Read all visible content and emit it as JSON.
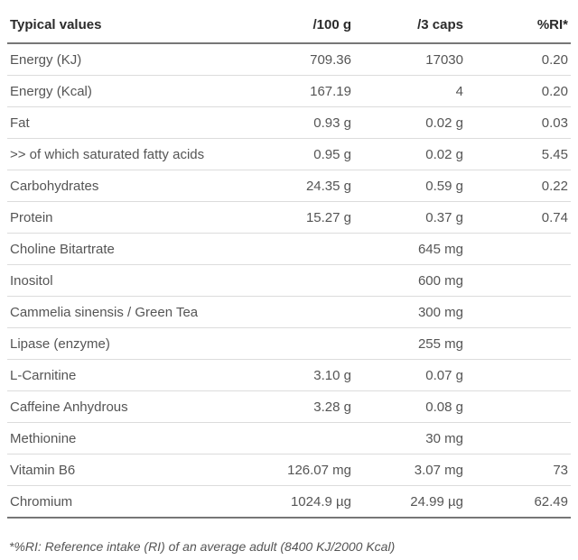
{
  "table": {
    "headers": [
      "Typical values",
      "/100 g",
      "/3 caps",
      "%RI*"
    ],
    "rows": [
      [
        "Energy (KJ)",
        "709.36",
        "17030",
        "0.20"
      ],
      [
        "Energy (Kcal)",
        "167.19",
        "4",
        "0.20"
      ],
      [
        "Fat",
        "0.93 g",
        "0.02 g",
        "0.03"
      ],
      [
        ">> of which saturated fatty acids",
        "0.95 g",
        "0.02 g",
        "5.45"
      ],
      [
        "Carbohydrates",
        "24.35 g",
        "0.59 g",
        "0.22"
      ],
      [
        "Protein",
        "15.27 g",
        "0.37 g",
        "0.74"
      ],
      [
        "Choline Bitartrate",
        "",
        "645 mg",
        ""
      ],
      [
        "Inositol",
        "",
        "600 mg",
        ""
      ],
      [
        "Cammelia sinensis / Green Tea",
        "",
        "300 mg",
        ""
      ],
      [
        "Lipase (enzyme)",
        "",
        "255 mg",
        ""
      ],
      [
        "L-Carnitine",
        "3.10 g",
        "0.07 g",
        ""
      ],
      [
        "Caffeine Anhydrous",
        "3.28 g",
        "0.08 g",
        ""
      ],
      [
        "Methionine",
        "",
        "30 mg",
        ""
      ],
      [
        "Vitamin B6",
        "126.07 mg",
        "3.07 mg",
        "73"
      ],
      [
        "Chromium",
        "1024.9 µg",
        "24.99 µg",
        "62.49"
      ]
    ]
  },
  "footnote": "*%RI: Reference intake (RI) of an average adult (8400 KJ/2000 Kcal)"
}
